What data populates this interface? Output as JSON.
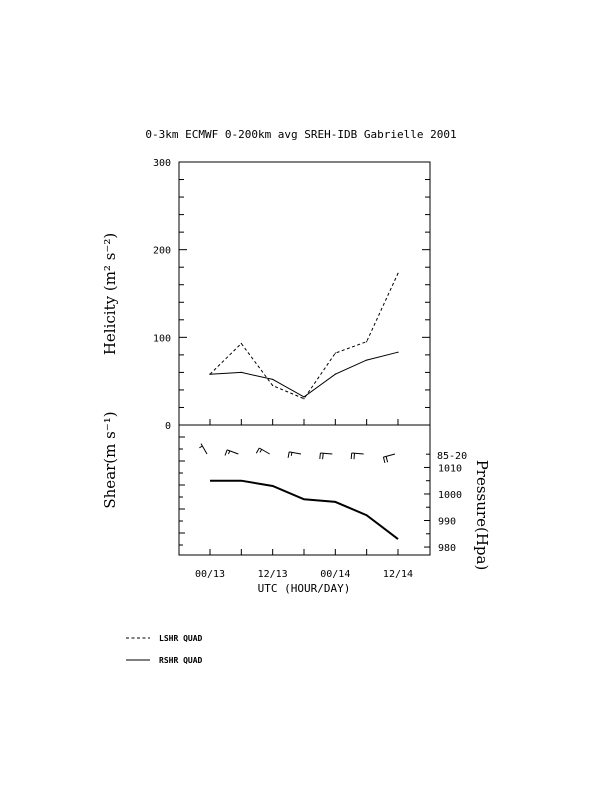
{
  "chart_data": [
    {
      "type": "line",
      "title": "0-3km ECMWF 0-200km avg SREH-IDB Gabrielle 2001",
      "ylabel": "Helicity (m² s⁻²)",
      "ylim": [
        0,
        300
      ],
      "y_ticks": [
        "0",
        "100",
        "200",
        "300"
      ],
      "x": [
        0,
        1,
        2,
        3,
        4,
        5,
        6
      ],
      "series": [
        {
          "name": "LSHR QUAD",
          "style": "dashed",
          "values": [
            58,
            93,
            45,
            30,
            82,
            95,
            173
          ]
        },
        {
          "name": "RSHR QUAD",
          "style": "solid",
          "values": [
            58,
            60,
            52,
            32,
            58,
            74,
            83
          ]
        }
      ]
    },
    {
      "type": "line",
      "ylabel_left": "Shear(m s⁻¹)",
      "ylabel_right": "Pressure(Hpa)",
      "pressure_ticks": [
        "1010",
        "1000",
        "990",
        "980"
      ],
      "shear_level_label": "85-20",
      "ylim": [
        977,
        1026
      ],
      "x": [
        0,
        1,
        2,
        3,
        4,
        5,
        6
      ],
      "series": [
        {
          "name": "pressure",
          "values": [
            1005,
            1005,
            1003,
            998,
            997,
            992,
            983
          ]
        }
      ],
      "wind_barbs": [
        {
          "speed_kt": 5,
          "direction_deg": 330
        },
        {
          "speed_kt": 15,
          "direction_deg": 290
        },
        {
          "speed_kt": 15,
          "direction_deg": 300
        },
        {
          "speed_kt": 15,
          "direction_deg": 280
        },
        {
          "speed_kt": 20,
          "direction_deg": 275
        },
        {
          "speed_kt": 20,
          "direction_deg": 275
        },
        {
          "speed_kt": 20,
          "direction_deg": 255
        }
      ],
      "x_tick_labels": [
        "00/13",
        "12/13",
        "00/14",
        "12/14"
      ],
      "x_tick_label_indices": [
        0,
        2,
        4,
        6
      ],
      "xlabel": "UTC (HOUR/DAY)"
    }
  ],
  "legend": [
    {
      "label": "LSHR QUAD",
      "style": "dashed"
    },
    {
      "label": "RSHR QUAD",
      "style": "solid"
    }
  ]
}
